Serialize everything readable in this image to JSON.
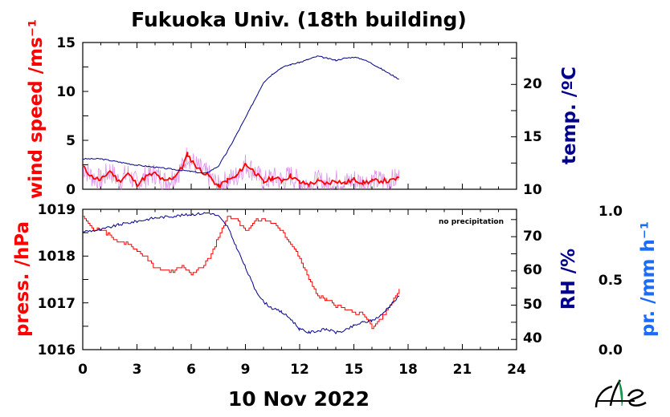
{
  "title": "Fukuoka Univ. (18th building)",
  "date_label": "10 Nov 2022",
  "annotation": "no precipitation",
  "colors": {
    "wind": "#ff0000",
    "wind_raw": "#cc66dd",
    "temp": "#00008b",
    "press": "#ff0000",
    "rh": "#00008b",
    "precip": "#1a6bff"
  },
  "chart_data": [
    {
      "type": "line",
      "panel": "top",
      "x_range": [
        0,
        24
      ],
      "x_ticks": [
        "0",
        "3",
        "6",
        "9",
        "12",
        "15",
        "18",
        "21",
        "24"
      ],
      "y_left": {
        "label": "wind speed /ms⁻¹",
        "range": [
          0,
          15
        ],
        "ticks": [
          "0",
          "5",
          "10",
          "15"
        ]
      },
      "y_right": {
        "label": "temp. /ºC",
        "range": [
          10,
          24
        ],
        "ticks": [
          "10",
          "15",
          "20"
        ]
      },
      "series": [
        {
          "axis": "left",
          "x": [
            0,
            0.5,
            1,
            1.5,
            2,
            2.5,
            3,
            3.5,
            4,
            4.5,
            5,
            5.5,
            5.8,
            6,
            6.5,
            7,
            7.5,
            8,
            8.5,
            9,
            9.5,
            10,
            10.5,
            11,
            11.5,
            12,
            12.5,
            13,
            13.5,
            14,
            14.5,
            15,
            15.5,
            16,
            16.5,
            17,
            17.5
          ],
          "values": [
            2.3,
            1.3,
            0.9,
            1.9,
            0.8,
            1.6,
            0.5,
            1.3,
            1.6,
            0.8,
            1.2,
            2.2,
            3.6,
            2.9,
            2.0,
            1.3,
            0.3,
            0.9,
            1.3,
            2.6,
            1.8,
            0.7,
            1.2,
            0.9,
            1.4,
            0.7,
            0.5,
            0.8,
            0.6,
            0.9,
            0.6,
            1.0,
            0.7,
            0.8,
            0.9,
            0.8,
            1.2
          ]
        },
        {
          "axis": "right",
          "x": [
            0,
            1,
            2,
            3,
            4,
            5,
            6,
            6.8,
            7.5,
            8,
            8.5,
            9,
            9.5,
            10,
            10.5,
            11,
            11.5,
            12,
            12.5,
            13,
            13.5,
            14,
            14.5,
            15,
            15.5,
            16,
            16.5,
            17,
            17.5
          ],
          "values": [
            12.9,
            12.9,
            12.6,
            12.3,
            12.1,
            11.9,
            11.7,
            11.5,
            12.2,
            13.6,
            15.2,
            16.8,
            18.5,
            20.2,
            21.0,
            21.6,
            21.9,
            22.1,
            22.4,
            22.7,
            22.5,
            22.3,
            22.5,
            22.6,
            22.4,
            22.0,
            21.5,
            21.0,
            20.5
          ]
        }
      ]
    },
    {
      "type": "line",
      "panel": "bottom",
      "x_range": [
        0,
        24
      ],
      "x_ticks": [
        "0",
        "3",
        "6",
        "9",
        "12",
        "15",
        "18",
        "21",
        "24"
      ],
      "y_left": {
        "label": "press. /hPa",
        "range": [
          1016,
          1019
        ],
        "ticks": [
          "1016",
          "1017",
          "1018",
          "1019"
        ]
      },
      "y_right": {
        "label": "RH /%",
        "range": [
          37,
          78
        ],
        "ticks": [
          "40",
          "50",
          "60",
          "70"
        ]
      },
      "y_precip": {
        "label": "pr. /mm h⁻¹",
        "range": [
          0,
          1
        ],
        "ticks": [
          "0.0",
          "0.5",
          "1.0"
        ]
      },
      "series": [
        {
          "axis": "left",
          "x": [
            0,
            0.5,
            1,
            1.5,
            2,
            2.5,
            3,
            3.5,
            4,
            4.5,
            5,
            5.5,
            6,
            6.5,
            7,
            7.5,
            8,
            8.5,
            9,
            9.5,
            10,
            10.5,
            11,
            11.5,
            12,
            12.5,
            13,
            13.5,
            14,
            14.5,
            15,
            15.5,
            16,
            16.5,
            17,
            17.5
          ],
          "values": [
            1018.85,
            1018.6,
            1018.55,
            1018.45,
            1018.3,
            1018.25,
            1018.1,
            1017.95,
            1017.75,
            1017.7,
            1017.65,
            1017.8,
            1017.6,
            1017.75,
            1017.95,
            1018.4,
            1018.85,
            1018.8,
            1018.55,
            1018.75,
            1018.8,
            1018.7,
            1018.55,
            1018.25,
            1017.95,
            1017.5,
            1017.15,
            1017.05,
            1016.95,
            1016.85,
            1016.8,
            1016.75,
            1016.45,
            1016.65,
            1016.95,
            1017.3
          ]
        },
        {
          "axis": "right",
          "x": [
            0,
            1,
            2,
            3,
            4,
            5,
            6,
            7,
            7.5,
            8,
            8.5,
            9,
            9.5,
            10,
            10.5,
            11,
            11.5,
            12,
            12.5,
            13,
            13.5,
            14,
            14.5,
            15,
            15.5,
            16,
            16.5,
            17,
            17.5
          ],
          "values": [
            71.5,
            72,
            73.5,
            74.5,
            75.5,
            76,
            76.5,
            77,
            76,
            73,
            67,
            61,
            55,
            51,
            49,
            48,
            46,
            43,
            42,
            42.5,
            43,
            42,
            42.5,
            44,
            45,
            45.5,
            47,
            50,
            52.5
          ]
        }
      ]
    }
  ]
}
